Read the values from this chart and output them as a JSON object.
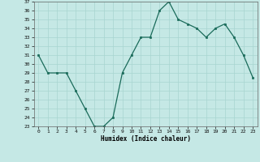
{
  "x": [
    0,
    1,
    2,
    3,
    4,
    5,
    6,
    7,
    8,
    9,
    10,
    11,
    12,
    13,
    14,
    15,
    16,
    17,
    18,
    19,
    20,
    21,
    22,
    23
  ],
  "y": [
    31,
    29,
    29,
    29,
    27,
    25,
    23,
    23,
    24,
    29,
    31,
    33,
    33,
    36,
    37,
    35,
    34.5,
    34,
    33,
    34,
    34.5,
    33,
    31,
    28.5
  ],
  "line_color": "#1a6b5a",
  "marker_color": "#1a6b5a",
  "bg_color": "#c5e8e5",
  "grid_color": "#a8d5d0",
  "xlabel": "Humidex (Indice chaleur)",
  "ylim": [
    23,
    37
  ],
  "xlim": [
    -0.5,
    23.5
  ],
  "yticks": [
    23,
    24,
    25,
    26,
    27,
    28,
    29,
    30,
    31,
    32,
    33,
    34,
    35,
    36,
    37
  ],
  "xticks": [
    0,
    1,
    2,
    3,
    4,
    5,
    6,
    7,
    8,
    9,
    10,
    11,
    12,
    13,
    14,
    15,
    16,
    17,
    18,
    19,
    20,
    21,
    22,
    23
  ]
}
